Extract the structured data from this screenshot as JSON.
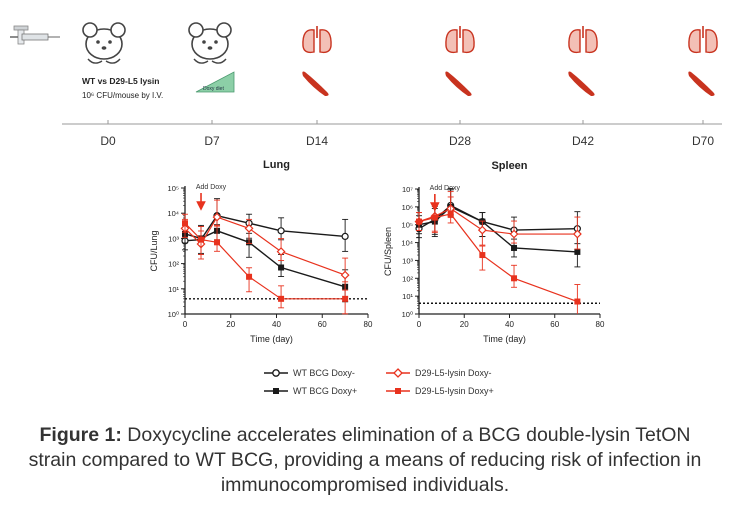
{
  "timeline": {
    "days": [
      "D0",
      "D7",
      "D14",
      "D28",
      "D42",
      "D70"
    ],
    "infection_strains": "WT vs D29-L5 lysin",
    "infection_dose": "10⁶ CFU/mouse by I.V.",
    "diet_label": "Doxy diet"
  },
  "colors": {
    "wt": "#1a1a1a",
    "d29": "#e8321e",
    "organ": "#c8331f"
  },
  "chart_data": [
    {
      "type": "line",
      "title": "Lung",
      "xlabel": "Time (day)",
      "ylabel": "CFU/Lung",
      "yscale": "log",
      "xlim": [
        0,
        80
      ],
      "ylim_exponents": [
        0,
        5
      ],
      "x_ticks": [
        "0",
        "20",
        "40",
        "60",
        "80"
      ],
      "y_ticks": [
        "10⁰",
        "10¹",
        "10²",
        "10³",
        "10⁴",
        "10⁵"
      ],
      "annotation": "Add Doxy",
      "annotation_x": 7,
      "detection_limit": 4,
      "series": [
        {
          "name": "WT BCG Doxy-",
          "color": "#1a1a1a",
          "marker": "open-circle",
          "x": [
            0,
            7,
            14,
            28,
            42,
            70
          ],
          "y": [
            800,
            900,
            8000,
            4000,
            2000,
            1200
          ]
        },
        {
          "name": "WT BCG Doxy+",
          "color": "#1a1a1a",
          "marker": "filled-square",
          "x": [
            0,
            7,
            14,
            28,
            42,
            70
          ],
          "y": [
            1500,
            1000,
            2000,
            700,
            70,
            12
          ]
        },
        {
          "name": "D29-L5-lysin Doxy-",
          "color": "#e8321e",
          "marker": "open-diamond",
          "x": [
            0,
            7,
            14,
            28,
            42,
            70
          ],
          "y": [
            2500,
            600,
            7000,
            2500,
            300,
            35
          ]
        },
        {
          "name": "D29-L5-lysin Doxy+",
          "color": "#e8321e",
          "marker": "filled-square",
          "x": [
            0,
            7,
            14,
            28,
            42,
            70
          ],
          "y": [
            4000,
            900,
            700,
            30,
            4,
            4
          ]
        }
      ]
    },
    {
      "type": "line",
      "title": "Spleen",
      "xlabel": "Time (day)",
      "ylabel": "CFU/Spleen",
      "yscale": "log",
      "xlim": [
        0,
        80
      ],
      "ylim_exponents": [
        0,
        7
      ],
      "x_ticks": [
        "0",
        "20",
        "40",
        "60",
        "80"
      ],
      "y_ticks": [
        "10⁰",
        "10¹",
        "10²",
        "10³",
        "10⁴",
        "10⁵",
        "10⁶",
        "10⁷"
      ],
      "annotation": "Add Doxy",
      "annotation_x": 7,
      "detection_limit": 4,
      "series": [
        {
          "name": "WT BCG Doxy-",
          "color": "#1a1a1a",
          "marker": "open-circle",
          "x": [
            0,
            7,
            14,
            28,
            42,
            70
          ],
          "y": [
            60000,
            200000,
            1200000,
            150000,
            50000,
            60000
          ]
        },
        {
          "name": "WT BCG Doxy+",
          "color": "#1a1a1a",
          "marker": "filled-square",
          "x": [
            0,
            7,
            14,
            28,
            42,
            70
          ],
          "y": [
            100000,
            150000,
            1000000,
            150000,
            5000,
            3000
          ]
        },
        {
          "name": "D29-L5-lysin Doxy-",
          "color": "#e8321e",
          "marker": "open-diamond",
          "x": [
            0,
            7,
            14,
            28,
            42,
            70
          ],
          "y": [
            150000,
            300000,
            800000,
            50000,
            30000,
            30000
          ]
        },
        {
          "name": "D29-L5-lysin Doxy+",
          "color": "#e8321e",
          "marker": "filled-square",
          "x": [
            0,
            7,
            14,
            28,
            42,
            70
          ],
          "y": [
            150000,
            250000,
            400000,
            2000,
            100,
            5
          ]
        }
      ]
    }
  ],
  "legend": [
    {
      "label": "WT BCG Doxy-",
      "color": "#1a1a1a",
      "marker": "open-circle"
    },
    {
      "label": "WT BCG Doxy+",
      "color": "#1a1a1a",
      "marker": "filled-square"
    },
    {
      "label": "D29-L5-lysin Doxy-",
      "color": "#e8321e",
      "marker": "open-diamond"
    },
    {
      "label": "D29-L5-lysin Doxy+",
      "color": "#e8321e",
      "marker": "filled-square"
    }
  ],
  "caption": {
    "label": "Figure 1:",
    "text": " Doxycycline accelerates elimination of a BCG double-lysin TetON strain compared to WT BCG, providing a means of reducing risk of infection in immunocompromised individuals."
  }
}
